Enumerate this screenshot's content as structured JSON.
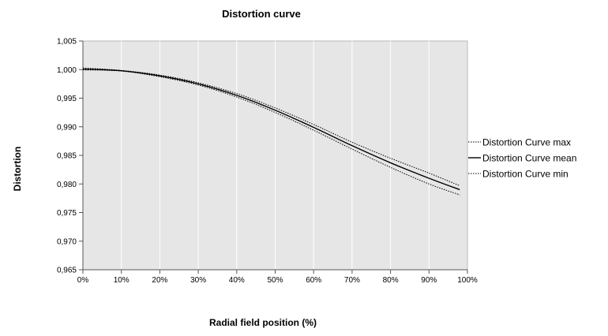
{
  "chart_data": {
    "type": "line",
    "title": "Distortion curve",
    "xlabel": "Radial field position (%)",
    "ylabel": "Distortion",
    "x_tick_labels": [
      "0%",
      "10%",
      "20%",
      "30%",
      "40%",
      "50%",
      "60%",
      "70%",
      "80%",
      "90%",
      "100%"
    ],
    "y_tick_labels": [
      "0,965",
      "0,970",
      "0,975",
      "0,980",
      "0,985",
      "0,990",
      "0,995",
      "1,000",
      "1,005"
    ],
    "xlim": [
      0,
      100
    ],
    "ylim": [
      0.965,
      1.005
    ],
    "grid": "vertical",
    "legend_position": "right",
    "x": [
      0,
      10,
      20,
      30,
      40,
      50,
      60,
      70,
      80,
      90,
      98
    ],
    "series": [
      {
        "name": "Distortion Curve max",
        "style": "dotted",
        "values": [
          1.0003,
          0.99985,
          0.99905,
          0.9977,
          0.9958,
          0.9933,
          0.9904,
          0.9873,
          0.9845,
          0.9819,
          0.9797
        ]
      },
      {
        "name": "Distortion Curve mean",
        "style": "solid",
        "values": [
          1.0001,
          0.9998,
          0.9989,
          0.9975,
          0.9955,
          0.9929,
          0.9899,
          0.9867,
          0.9837,
          0.981,
          0.979
        ]
      },
      {
        "name": "Distortion Curve min",
        "style": "dotted",
        "values": [
          0.99995,
          0.99975,
          0.99875,
          0.9973,
          0.9952,
          0.9925,
          0.9894,
          0.9861,
          0.9829,
          0.98,
          0.9781
        ]
      }
    ],
    "colors": {
      "plot_background": "#e6e6e6",
      "grid": "#ffffff",
      "line": "#000000"
    }
  }
}
